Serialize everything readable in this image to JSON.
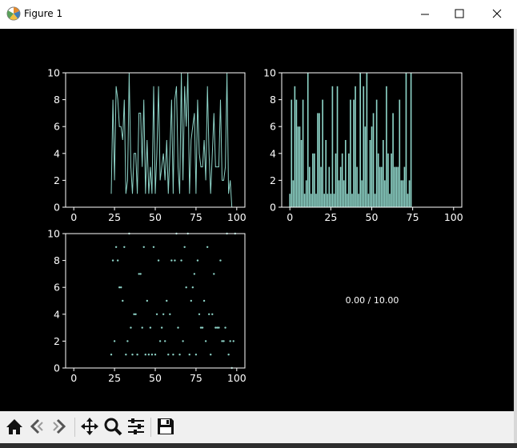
{
  "window": {
    "title": "Figure 1"
  },
  "toolbar": {
    "buttons": [
      "home-icon",
      "back-icon",
      "forward-icon",
      "pan-icon",
      "zoom-icon",
      "configure-icon",
      "save-icon"
    ]
  },
  "colors": {
    "series": "#8dd3c7",
    "background": "#000000",
    "axes": "#ffffff"
  },
  "chart_data": [
    {
      "type": "line",
      "xlim": [
        -5,
        105
      ],
      "ylim": [
        0,
        10
      ],
      "xticks": [
        "0",
        "25",
        "50",
        "75",
        "100"
      ],
      "yticks": [
        "0",
        "2",
        "4",
        "6",
        "8",
        "10"
      ],
      "x": [
        23,
        24,
        25,
        26,
        27,
        28,
        29,
        30,
        31,
        32,
        33,
        34,
        35,
        36,
        37,
        38,
        39,
        40,
        41,
        42,
        43,
        44,
        45,
        46,
        47,
        48,
        49,
        50,
        51,
        52,
        53,
        54,
        55,
        56,
        57,
        58,
        59,
        60,
        61,
        62,
        63,
        64,
        65,
        66,
        67,
        68,
        69,
        70,
        71,
        72,
        73,
        74,
        75,
        76,
        77,
        78,
        79,
        80,
        81,
        82,
        83,
        84,
        85,
        86,
        87,
        88,
        89,
        90,
        91,
        92,
        93,
        94,
        95,
        96,
        97,
        98,
        99
      ],
      "y": [
        1,
        8,
        2,
        9,
        8,
        6,
        6,
        5,
        8,
        1,
        2,
        10,
        3,
        1,
        4,
        4,
        1,
        7,
        7,
        3,
        8,
        1,
        5,
        1,
        3,
        1,
        9,
        1,
        4,
        9,
        2,
        3,
        4,
        2,
        5,
        1,
        4,
        8,
        1,
        8,
        9,
        3,
        1,
        10,
        2,
        9,
        6,
        10,
        1,
        5,
        6,
        7,
        1,
        8,
        4,
        3,
        3,
        5,
        2,
        9,
        4,
        1,
        4,
        7,
        3,
        3,
        3,
        8,
        2,
        2,
        3,
        10,
        1,
        2,
        0,
        0,
        0
      ]
    },
    {
      "type": "bar",
      "xlim": [
        -5,
        105
      ],
      "ylim": [
        0,
        10
      ],
      "xticks": [
        "0",
        "25",
        "50",
        "75",
        "100"
      ],
      "yticks": [
        "0",
        "2",
        "4",
        "6",
        "8",
        "10"
      ],
      "categories": [
        0,
        1,
        2,
        3,
        4,
        5,
        6,
        7,
        8,
        9,
        10,
        11,
        12,
        13,
        14,
        15,
        16,
        17,
        18,
        19,
        20,
        21,
        22,
        23,
        24,
        25,
        26,
        27,
        28,
        29,
        30,
        31,
        32,
        33,
        34,
        35,
        36,
        37,
        38,
        39,
        40,
        41,
        42,
        43,
        44,
        45,
        46,
        47,
        48,
        49,
        50,
        51,
        52,
        53,
        54,
        55,
        56,
        57,
        58,
        59,
        60,
        61,
        62,
        63,
        64,
        65,
        66,
        67,
        68,
        69,
        70,
        71,
        72,
        73,
        74
      ],
      "values": [
        1,
        8,
        2,
        9,
        8,
        6,
        6,
        5,
        8,
        1,
        2,
        10,
        3,
        1,
        4,
        4,
        1,
        7,
        7,
        3,
        8,
        1,
        5,
        1,
        3,
        1,
        9,
        1,
        4,
        9,
        2,
        3,
        4,
        2,
        5,
        1,
        4,
        8,
        1,
        8,
        9,
        3,
        1,
        10,
        2,
        9,
        6,
        10,
        1,
        5,
        6,
        7,
        1,
        8,
        4,
        3,
        3,
        5,
        2,
        9,
        4,
        1,
        4,
        7,
        3,
        3,
        3,
        8,
        2,
        2,
        3,
        10,
        1,
        2,
        10
      ]
    },
    {
      "type": "scatter",
      "xlim": [
        -5,
        105
      ],
      "ylim": [
        0,
        10
      ],
      "xticks": [
        "0",
        "25",
        "50",
        "75",
        "100"
      ],
      "yticks": [
        "0",
        "2",
        "4",
        "6",
        "8",
        "10"
      ],
      "x": [
        23,
        24,
        25,
        26,
        27,
        28,
        29,
        30,
        31,
        32,
        33,
        34,
        35,
        36,
        37,
        38,
        39,
        40,
        41,
        42,
        43,
        44,
        45,
        46,
        47,
        48,
        49,
        50,
        51,
        52,
        53,
        54,
        55,
        56,
        57,
        58,
        59,
        60,
        61,
        62,
        63,
        64,
        65,
        66,
        67,
        68,
        69,
        70,
        71,
        72,
        73,
        74,
        75,
        76,
        77,
        78,
        79,
        80,
        81,
        82,
        83,
        84,
        85,
        86,
        87,
        88,
        89,
        90,
        91,
        92,
        93,
        94,
        95,
        96,
        97,
        98,
        99
      ],
      "y": [
        1,
        8,
        2,
        9,
        8,
        6,
        6,
        5,
        9,
        1,
        2,
        10,
        3,
        1,
        4,
        4,
        1,
        7,
        7,
        3,
        9,
        1,
        5,
        1,
        3,
        1,
        9,
        1,
        4,
        8,
        2,
        3,
        4,
        2,
        5,
        1,
        4,
        8,
        1,
        8,
        10,
        3,
        1,
        8,
        2,
        9,
        6,
        10,
        1,
        5,
        6,
        7,
        1,
        8,
        4,
        3,
        3,
        5,
        2,
        9,
        4,
        1,
        4,
        7,
        3,
        3,
        3,
        8,
        2,
        2,
        3,
        10,
        1,
        2,
        0,
        2,
        10
      ]
    },
    {
      "type": "table",
      "annotation": "0.00 / 10.00"
    }
  ]
}
